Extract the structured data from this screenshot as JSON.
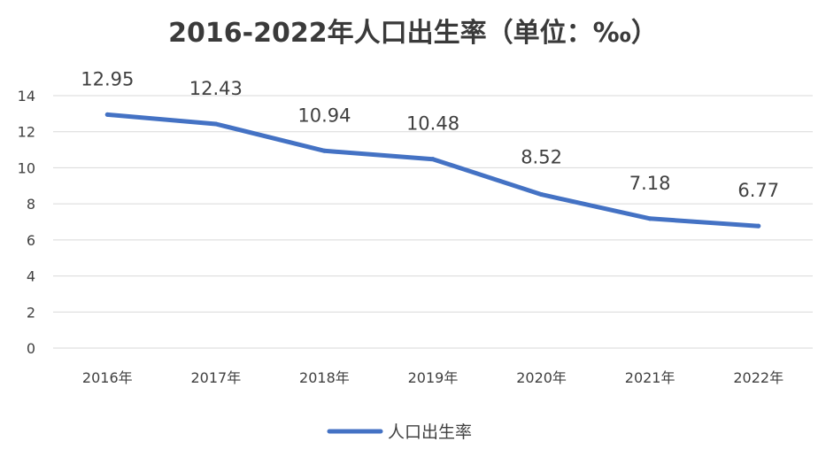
{
  "chart_data": {
    "type": "line",
    "title": "2016-2022年人口出生率（单位：‰）",
    "categories": [
      "2016年",
      "2017年",
      "2018年",
      "2019年",
      "2020年",
      "2021年",
      "2022年"
    ],
    "series": [
      {
        "name": "人口出生率",
        "values": [
          12.95,
          12.43,
          10.94,
          10.48,
          8.52,
          7.18,
          6.77
        ],
        "color": "#4472c4"
      }
    ],
    "xlabel": "",
    "ylabel": "",
    "ylim": [
      0,
      14
    ],
    "yticks": [
      0,
      2,
      4,
      6,
      8,
      10,
      12,
      14
    ],
    "data_labels": [
      "12.95",
      "12.43",
      "10.94",
      "10.48",
      "8.52",
      "7.18",
      "6.77"
    ],
    "grid": true,
    "legend_position": "bottom"
  },
  "colors": {
    "series_line": "#4472c4",
    "gridline": "#d9d9d9",
    "text": "#404040",
    "title": "#3a3a3a"
  }
}
